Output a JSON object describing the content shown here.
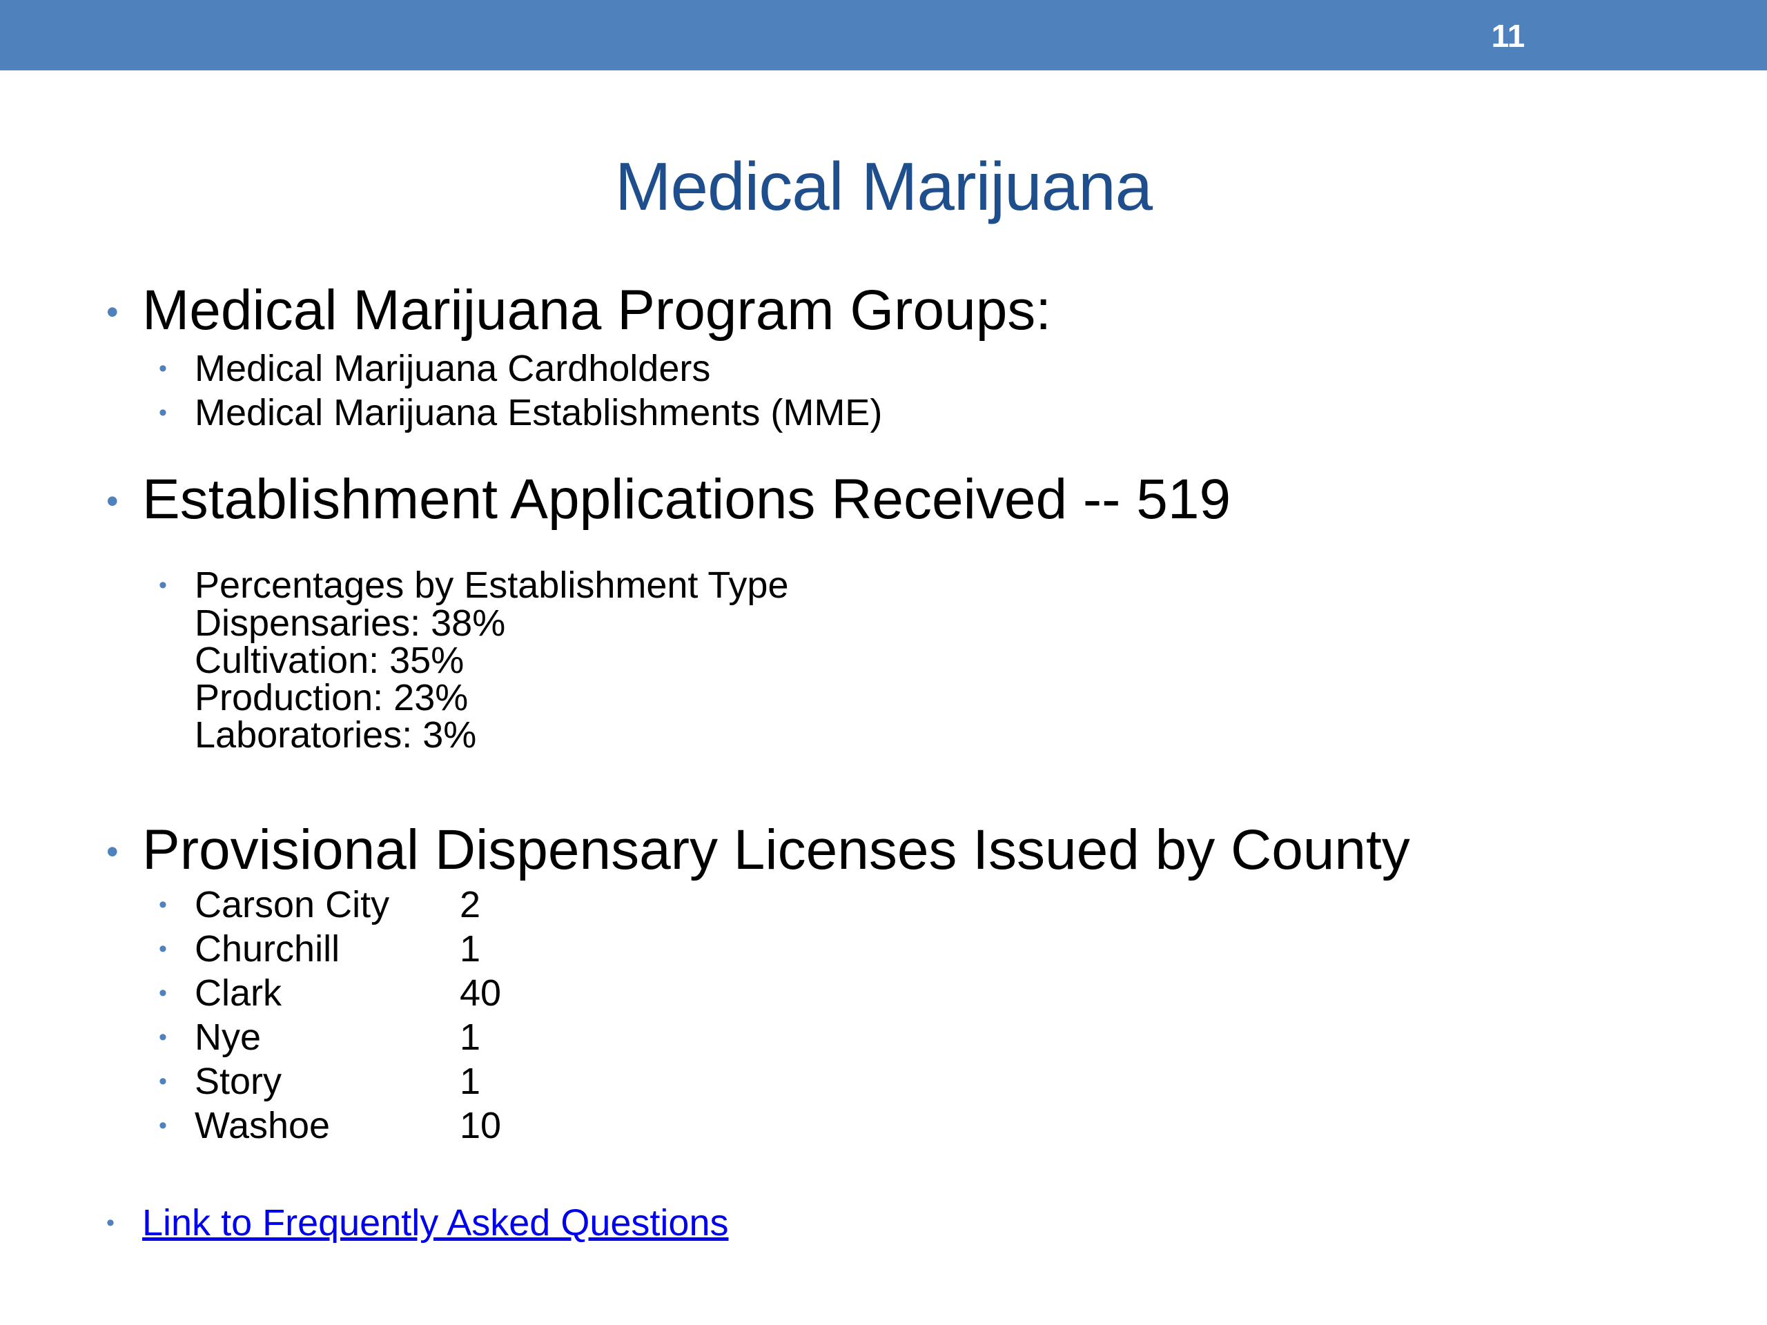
{
  "header": {
    "slide_number": "11",
    "bar_color": "#4f81bd"
  },
  "title": "Medical Marijuana",
  "program_groups": {
    "heading": "Medical Marijuana Program Groups:",
    "items": [
      "Medical Marijuana Cardholders",
      "Medical Marijuana Establishments (MME)"
    ]
  },
  "applications": {
    "heading": "Establishment Applications Received -- 519",
    "percentages": {
      "label": "Percentages by Establishment Type",
      "lines": [
        "Dispensaries: 38%",
        "Cultivation: 35%",
        "Production: 23%",
        "Laboratories: 3%"
      ]
    }
  },
  "licenses": {
    "heading": "Provisional Dispensary Licenses Issued by County",
    "rows": [
      {
        "county": "Carson City",
        "count": "2"
      },
      {
        "county": "Churchill",
        "count": "1"
      },
      {
        "county": "Clark",
        "count": "40"
      },
      {
        "county": "Nye",
        "count": "1"
      },
      {
        "county": "Story",
        "count": "1"
      },
      {
        "county": "Washoe",
        "count": "10"
      }
    ]
  },
  "faq_link": "Link to Frequently Asked Questions"
}
